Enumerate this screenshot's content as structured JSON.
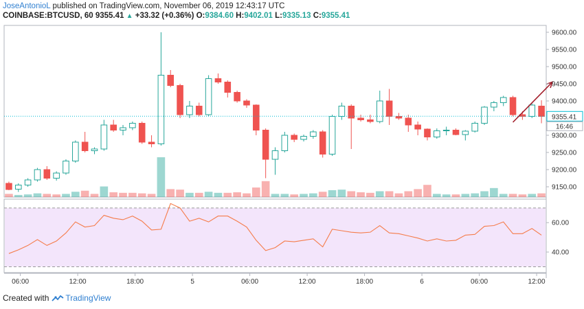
{
  "header": {
    "author": "JoseAntonioL",
    "published": "published on TradingView.com, November 06, 2019 12:43:17 UTC",
    "symbol": "COINBASE:BTCUSD, 60",
    "last": "9355.41",
    "change": "+33.32 (+0.36%)",
    "o_label": "O:",
    "o_value": "9384.60",
    "h_label": "H:",
    "h_value": "9402.01",
    "l_label": "L:",
    "l_value": "9335.13",
    "c_label": "C:",
    "c_value": "9355.41"
  },
  "footer": {
    "created_with": "Created with",
    "brand": "TradingView"
  },
  "colors": {
    "up": "#26a69a",
    "down": "#ef5350",
    "price_line": "#00bcd4",
    "rsi": "#f57c4a",
    "rsi_band": "#f3e5fb",
    "arrow": "#a21d2a"
  },
  "chart_data": [
    {
      "type": "candlestick",
      "title": "",
      "price_ticks": [
        "9600.00",
        "9550.00",
        "9500.00",
        "9450.00",
        "9400.00",
        "9350.00",
        "9300.00",
        "9250.00",
        "9200.00",
        "9150.00"
      ],
      "ylim": [
        9120,
        9620
      ],
      "x_ticks": [
        "06:00",
        "12:00",
        "18:00",
        "5",
        "06:00",
        "12:00",
        "18:00",
        "6",
        "06:00",
        "12:00"
      ],
      "last_price_label": "9355.41",
      "countdown_label": "16:46",
      "annotation": {
        "type": "arrow",
        "from": [
          53,
          9338
        ],
        "to": [
          57,
          9455
        ]
      },
      "candles": [
        [
          9160,
          9165,
          9140,
          9142
        ],
        [
          9143,
          9160,
          9135,
          9155
        ],
        [
          9155,
          9175,
          9150,
          9170
        ],
        [
          9170,
          9205,
          9165,
          9200
        ],
        [
          9200,
          9210,
          9170,
          9175
        ],
        [
          9175,
          9195,
          9168,
          9190
        ],
        [
          9190,
          9230,
          9185,
          9225
        ],
        [
          9225,
          9285,
          9220,
          9280
        ],
        [
          9280,
          9310,
          9250,
          9255
        ],
        [
          9255,
          9265,
          9245,
          9260
        ],
        [
          9260,
          9345,
          9255,
          9330
        ],
        [
          9330,
          9345,
          9310,
          9315
        ],
        [
          9315,
          9330,
          9300,
          9322
        ],
        [
          9322,
          9340,
          9315,
          9335
        ],
        [
          9335,
          9340,
          9275,
          9280
        ],
        [
          9280,
          9300,
          9265,
          9275
        ],
        [
          9275,
          9600,
          9270,
          9475
        ],
        [
          9475,
          9490,
          9440,
          9445
        ],
        [
          9445,
          9450,
          9350,
          9360
        ],
        [
          9360,
          9400,
          9350,
          9385
        ],
        [
          9385,
          9395,
          9355,
          9360
        ],
        [
          9360,
          9475,
          9355,
          9465
        ],
        [
          9465,
          9480,
          9450,
          9455
        ],
        [
          9455,
          9460,
          9410,
          9425
        ],
        [
          9425,
          9430,
          9395,
          9400
        ],
        [
          9400,
          9405,
          9380,
          9388
        ],
        [
          9388,
          9390,
          9300,
          9315
        ],
        [
          9315,
          9320,
          9175,
          9230
        ],
        [
          9230,
          9265,
          9185,
          9255
        ],
        [
          9255,
          9310,
          9250,
          9300
        ],
        [
          9300,
          9305,
          9280,
          9288
        ],
        [
          9288,
          9302,
          9282,
          9297
        ],
        [
          9297,
          9315,
          9290,
          9310
        ],
        [
          9310,
          9315,
          9235,
          9245
        ],
        [
          9245,
          9360,
          9240,
          9355
        ],
        [
          9355,
          9395,
          9345,
          9385
        ],
        [
          9385,
          9390,
          9260,
          9350
        ],
        [
          9350,
          9360,
          9340,
          9345
        ],
        [
          9345,
          9360,
          9335,
          9340
        ],
        [
          9340,
          9430,
          9335,
          9400
        ],
        [
          9400,
          9435,
          9330,
          9355
        ],
        [
          9355,
          9365,
          9345,
          9350
        ],
        [
          9350,
          9360,
          9310,
          9330
        ],
        [
          9330,
          9340,
          9300,
          9318
        ],
        [
          9318,
          9320,
          9285,
          9295
        ],
        [
          9295,
          9320,
          9290,
          9313
        ],
        [
          9313,
          9325,
          9300,
          9315
        ],
        [
          9315,
          9320,
          9300,
          9302
        ],
        [
          9302,
          9315,
          9285,
          9312
        ],
        [
          9312,
          9340,
          9308,
          9335
        ],
        [
          9335,
          9385,
          9330,
          9382
        ],
        [
          9382,
          9400,
          9370,
          9395
        ],
        [
          9395,
          9415,
          9385,
          9410
        ],
        [
          9410,
          9415,
          9355,
          9360
        ],
        [
          9360,
          9370,
          9345,
          9355
        ],
        [
          9355,
          9395,
          9350,
          9388
        ],
        [
          9385,
          9402,
          9335,
          9355
        ]
      ],
      "volume": [
        [
          6,
          "down"
        ],
        [
          4,
          "up"
        ],
        [
          5,
          "up"
        ],
        [
          7,
          "up"
        ],
        [
          6,
          "down"
        ],
        [
          5,
          "down"
        ],
        [
          6,
          "up"
        ],
        [
          10,
          "up"
        ],
        [
          12,
          "down"
        ],
        [
          6,
          "down"
        ],
        [
          20,
          "up"
        ],
        [
          9,
          "down"
        ],
        [
          8,
          "down"
        ],
        [
          8,
          "down"
        ],
        [
          7,
          "down"
        ],
        [
          6,
          "down"
        ],
        [
          75,
          "up"
        ],
        [
          15,
          "down"
        ],
        [
          14,
          "down"
        ],
        [
          8,
          "up"
        ],
        [
          8,
          "down"
        ],
        [
          10,
          "up"
        ],
        [
          8,
          "up"
        ],
        [
          8,
          "down"
        ],
        [
          9,
          "down"
        ],
        [
          7,
          "down"
        ],
        [
          18,
          "down"
        ],
        [
          30,
          "down"
        ],
        [
          6,
          "up"
        ],
        [
          6,
          "up"
        ],
        [
          5,
          "down"
        ],
        [
          6,
          "up"
        ],
        [
          7,
          "up"
        ],
        [
          10,
          "down"
        ],
        [
          13,
          "up"
        ],
        [
          14,
          "up"
        ],
        [
          11,
          "down"
        ],
        [
          9,
          "down"
        ],
        [
          8,
          "down"
        ],
        [
          11,
          "up"
        ],
        [
          11,
          "down"
        ],
        [
          7,
          "down"
        ],
        [
          11,
          "down"
        ],
        [
          15,
          "down"
        ],
        [
          23,
          "down"
        ],
        [
          6,
          "up"
        ],
        [
          5,
          "up"
        ],
        [
          5,
          "down"
        ],
        [
          6,
          "up"
        ],
        [
          7,
          "up"
        ],
        [
          11,
          "up"
        ],
        [
          17,
          "up"
        ],
        [
          6,
          "up"
        ],
        [
          6,
          "down"
        ],
        [
          5,
          "down"
        ],
        [
          6,
          "up"
        ],
        [
          7,
          "down"
        ]
      ]
    },
    {
      "type": "line",
      "title": "",
      "y_ticks": [
        "60.00",
        "40.00"
      ],
      "ylim": [
        26,
        76
      ],
      "band": [
        30,
        70
      ],
      "values": [
        39,
        41.5,
        44.5,
        48.5,
        44.5,
        47.5,
        53,
        60.5,
        57,
        58,
        65,
        63,
        62,
        64.5,
        61,
        55,
        55.5,
        73,
        70,
        61,
        63,
        60.5,
        64.5,
        64.5,
        61,
        57,
        48,
        41,
        43,
        47.5,
        47,
        48,
        49,
        43.5,
        55.5,
        54.5,
        53.5,
        53,
        53.5,
        58,
        53,
        52.5,
        51,
        49.5,
        47.5,
        49,
        47.5,
        48,
        51.5,
        52,
        57.5,
        58,
        60.5,
        52.5,
        52.5,
        56,
        51.5
      ]
    }
  ]
}
